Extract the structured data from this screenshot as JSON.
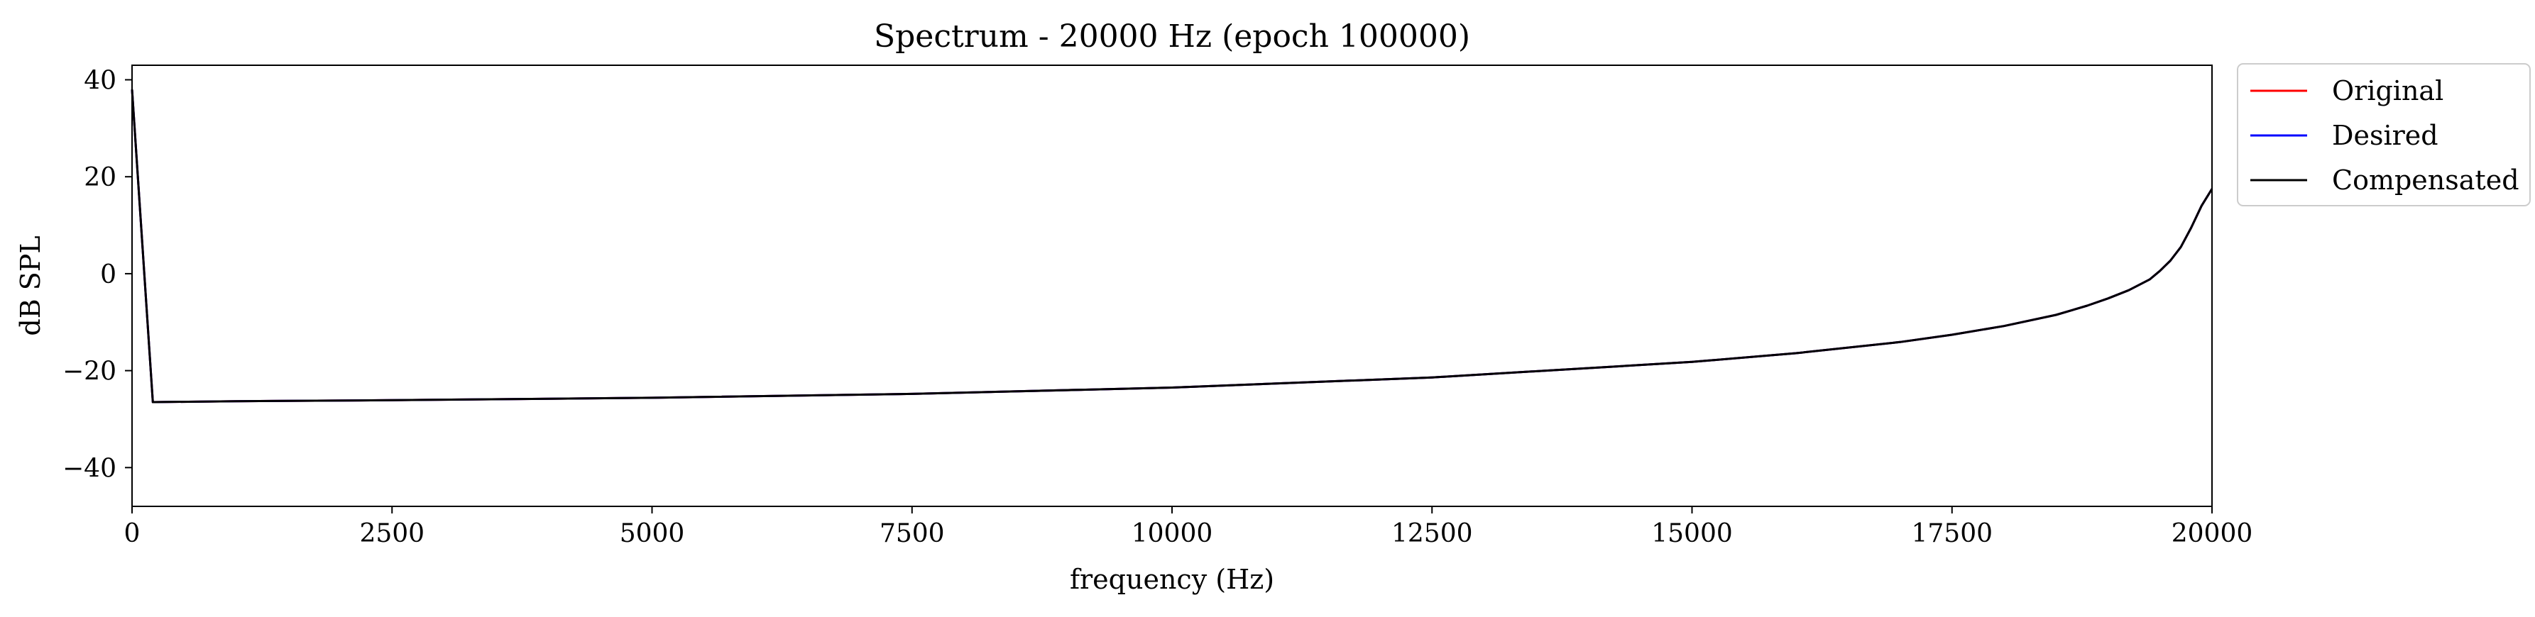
{
  "chart_data": {
    "type": "line",
    "title": "Spectrum - 20000 Hz (epoch 100000)",
    "xlabel": "frequency (Hz)",
    "ylabel": "dB SPL",
    "xlim": [
      0,
      20000
    ],
    "ylim": [
      -48,
      43
    ],
    "x_ticks": [
      0,
      2500,
      5000,
      7500,
      10000,
      12500,
      15000,
      17500,
      20000
    ],
    "y_ticks": [
      40,
      20,
      0,
      -20,
      -40
    ],
    "y_tick_labels": [
      "40",
      "20",
      "0",
      "−20",
      "−40"
    ],
    "grid": false,
    "legend_position": "outside-top-right",
    "x": [
      0,
      200,
      1000,
      2500,
      5000,
      7500,
      10000,
      12500,
      15000,
      16000,
      17000,
      17500,
      18000,
      18500,
      18800,
      19000,
      19200,
      19400,
      19500,
      19600,
      19700,
      19800,
      19900,
      20000
    ],
    "series": [
      {
        "name": "Original",
        "color": "#ff0000",
        "values": [
          38,
          -26.5,
          -26.3,
          -26.1,
          -25.6,
          -24.8,
          -23.5,
          -21.4,
          -18.2,
          -16.4,
          -14.1,
          -12.6,
          -10.8,
          -8.5,
          -6.6,
          -5.1,
          -3.4,
          -1.2,
          0.6,
          2.7,
          5.5,
          9.5,
          14.0,
          17.5
        ]
      },
      {
        "name": "Desired",
        "color": "#0000ff",
        "values": [
          38,
          -26.5,
          -26.3,
          -26.1,
          -25.6,
          -24.8,
          -23.5,
          -21.4,
          -18.2,
          -16.4,
          -14.1,
          -12.6,
          -10.8,
          -8.5,
          -6.6,
          -5.1,
          -3.4,
          -1.2,
          0.6,
          2.7,
          5.5,
          9.5,
          14.0,
          17.5
        ]
      },
      {
        "name": "Compensated",
        "color": "#000000",
        "values": [
          38,
          -26.5,
          -26.3,
          -26.1,
          -25.6,
          -24.8,
          -23.5,
          -21.4,
          -18.2,
          -16.4,
          -14.1,
          -12.6,
          -10.8,
          -8.5,
          -6.6,
          -5.1,
          -3.4,
          -1.2,
          0.6,
          2.7,
          5.5,
          9.5,
          14.0,
          17.5
        ]
      }
    ]
  }
}
